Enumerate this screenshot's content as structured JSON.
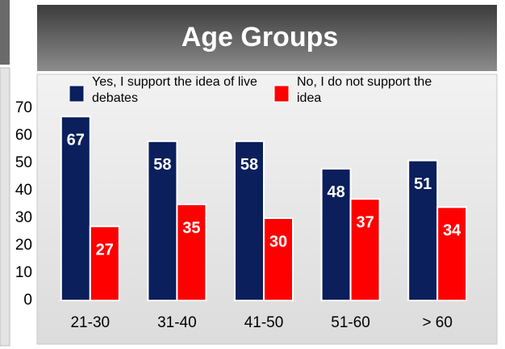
{
  "chart_data": {
    "type": "bar",
    "title": "Age Groups",
    "categories": [
      "21-30",
      "31-40",
      "41-50",
      "51-60",
      "> 60"
    ],
    "series": [
      {
        "name": "Yes, I support the idea of live debates",
        "color": "#0a1f5c",
        "values": [
          67,
          58,
          58,
          48,
          51
        ]
      },
      {
        "name": "No, I do not support the idea",
        "color": "#ff0000",
        "values": [
          27,
          35,
          30,
          37,
          34
        ]
      }
    ],
    "ylim": [
      0,
      70
    ],
    "yticks": [
      0,
      10,
      20,
      30,
      40,
      50,
      60,
      70
    ],
    "grid": false,
    "legend": "top"
  }
}
